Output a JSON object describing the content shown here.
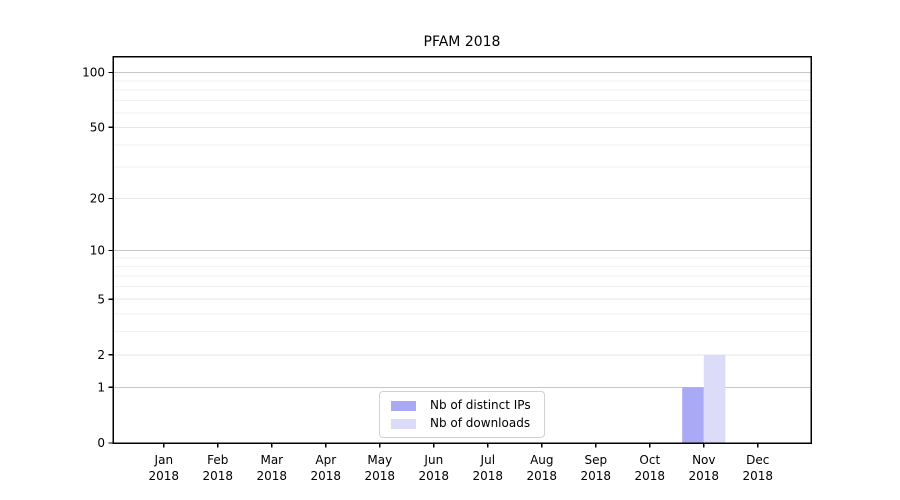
{
  "page": {
    "background": "#ffffff"
  },
  "chart_data": {
    "type": "bar",
    "title": "PFAM 2018",
    "categories": [
      "Jan",
      "Feb",
      "Mar",
      "Apr",
      "May",
      "Jun",
      "Jul",
      "Aug",
      "Sep",
      "Oct",
      "Nov",
      "Dec"
    ],
    "category_sublabel": "2018",
    "series": [
      {
        "name": "Nb of distinct IPs",
        "color": "#a9a9f6",
        "values": [
          0,
          0,
          0,
          0,
          0,
          0,
          0,
          0,
          0,
          0,
          1,
          0
        ]
      },
      {
        "name": "Nb of downloads",
        "color": "#dcdcf9",
        "values": [
          0,
          0,
          0,
          0,
          0,
          0,
          0,
          0,
          0,
          0,
          2,
          0
        ]
      }
    ],
    "xlabel": "",
    "ylabel": "",
    "yscale": "log1p",
    "ylim": [
      0,
      122
    ],
    "yticks": [
      0,
      1,
      2,
      5,
      10,
      20,
      50,
      100
    ],
    "ytick_labels": [
      "0",
      "1",
      "2",
      "5",
      "10",
      "20",
      "50",
      "100"
    ],
    "minor_gridlines": [
      3,
      4,
      6,
      7,
      8,
      9,
      30,
      40,
      60,
      70,
      80,
      90
    ],
    "grid": "horizontal",
    "legend_position": "bottom-center",
    "colors": {
      "major_grid": "#c8c8c8",
      "mid_grid": "#e6e6e6",
      "minor_grid": "#f2f2f2",
      "axis": "#000000",
      "text": "#000000",
      "legend_border": "#d2d2d2"
    }
  }
}
